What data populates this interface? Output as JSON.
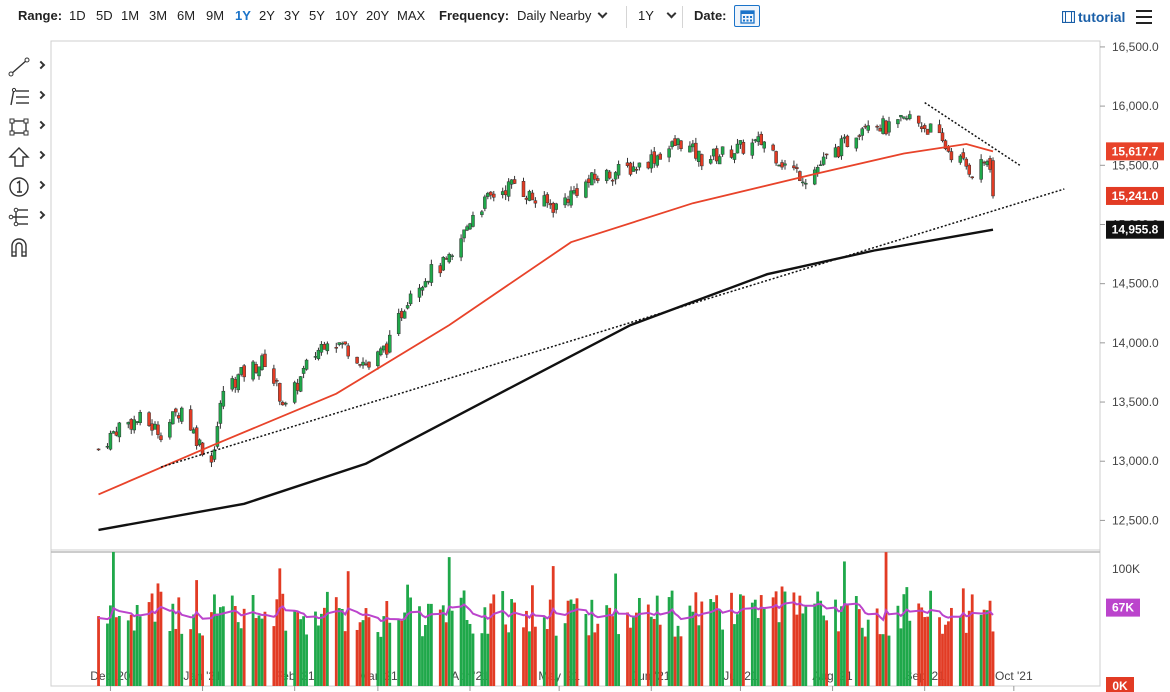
{
  "toolbar": {
    "range_label": "Range:",
    "ranges": [
      "1D",
      "5D",
      "1M",
      "3M",
      "6M",
      "9M",
      "1Y",
      "2Y",
      "3Y",
      "5Y",
      "10Y",
      "20Y",
      "MAX"
    ],
    "active_range": "1Y",
    "frequency_label": "Frequency:",
    "frequency_value": "Daily Nearby",
    "period_value": "1Y",
    "date_label": "Date:",
    "tutorial_label": "tutorial"
  },
  "sidebar": {
    "tools": [
      "trendline-tool-icon",
      "fibonacci-tool-icon",
      "rectangle-tool-icon",
      "arrow-tool-icon",
      "annotation-tool-icon",
      "pitchfork-tool-icon",
      "magnet-icon"
    ]
  },
  "colors": {
    "up": "#1fa84a",
    "down": "#e23b24",
    "ma_short": "#e8432a",
    "ma_long": "#111111",
    "volume_avg": "#bb44cc",
    "accent": "#1a73c9"
  },
  "chart_data": {
    "type": "candlestick",
    "x_tick_labels": [
      "Dec '20",
      "Jan '21",
      "Feb '21",
      "Mar '21",
      "Apr '21",
      "May '21",
      "Jun '21",
      "Jul '21",
      "Aug '21",
      "Sep '21",
      "Oct '21"
    ],
    "y_tick_labels": [
      "16,500.0",
      "16,000.0",
      "15,500.0",
      "15,000.0",
      "14,500.0",
      "14,000.0",
      "13,500.0",
      "13,000.0",
      "12,500.0"
    ],
    "ylim": [
      12250,
      16550
    ],
    "close_path": [
      [
        "2020-11-27",
        13100
      ],
      [
        "2020-12-04",
        13300
      ],
      [
        "2020-12-11",
        13350
      ],
      [
        "2020-12-18",
        13250
      ],
      [
        "2020-12-25",
        13450
      ],
      [
        "2020-12-31",
        13150
      ],
      [
        "2021-01-04",
        13000
      ],
      [
        "2021-01-08",
        13600
      ],
      [
        "2021-01-15",
        13750
      ],
      [
        "2021-01-22",
        13850
      ],
      [
        "2021-01-29",
        13450
      ],
      [
        "2021-02-05",
        13800
      ],
      [
        "2021-02-12",
        14050
      ],
      [
        "2021-02-19",
        13950
      ],
      [
        "2021-02-26",
        13800
      ],
      [
        "2021-03-05",
        14000
      ],
      [
        "2021-03-12",
        14450
      ],
      [
        "2021-03-19",
        14600
      ],
      [
        "2021-03-26",
        14700
      ],
      [
        "2021-04-02",
        15100
      ],
      [
        "2021-04-09",
        15250
      ],
      [
        "2021-04-16",
        15350
      ],
      [
        "2021-04-23",
        15200
      ],
      [
        "2021-04-30",
        15150
      ],
      [
        "2021-05-07",
        15300
      ],
      [
        "2021-05-14",
        15400
      ],
      [
        "2021-05-21",
        15450
      ],
      [
        "2021-05-28",
        15500
      ],
      [
        "2021-06-04",
        15600
      ],
      [
        "2021-06-11",
        15700
      ],
      [
        "2021-06-18",
        15550
      ],
      [
        "2021-06-25",
        15600
      ],
      [
        "2021-07-02",
        15650
      ],
      [
        "2021-07-09",
        15700
      ],
      [
        "2021-07-16",
        15500
      ],
      [
        "2021-07-23",
        15400
      ],
      [
        "2021-07-30",
        15550
      ],
      [
        "2021-08-06",
        15700
      ],
      [
        "2021-08-13",
        15900
      ],
      [
        "2021-08-20",
        15800
      ],
      [
        "2021-08-27",
        15900
      ],
      [
        "2021-09-03",
        15800
      ],
      [
        "2021-09-10",
        15600
      ],
      [
        "2021-09-17",
        15450
      ],
      [
        "2021-09-22",
        15550
      ],
      [
        "2021-09-24",
        15241
      ]
    ],
    "indicators": [
      {
        "type": "moving-average",
        "points": [
          [
            "2020-11-27",
            12720
          ],
          [
            "2021-01-04",
            13130
          ],
          [
            "2021-02-15",
            13570
          ],
          [
            "2021-03-25",
            14150
          ],
          [
            "2021-05-05",
            14850
          ],
          [
            "2021-06-15",
            15180
          ],
          [
            "2021-07-25",
            15420
          ],
          [
            "2021-08-25",
            15600
          ],
          [
            "2021-09-15",
            15680
          ],
          [
            "2021-09-24",
            15617.7
          ]
        ],
        "last_value": "15,617.7"
      },
      {
        "type": "moving-average",
        "points": [
          [
            "2020-11-27",
            12420
          ],
          [
            "2021-01-15",
            12640
          ],
          [
            "2021-02-25",
            12980
          ],
          [
            "2021-04-10",
            13560
          ],
          [
            "2021-05-25",
            14150
          ],
          [
            "2021-07-10",
            14580
          ],
          [
            "2021-08-15",
            14780
          ],
          [
            "2021-09-24",
            14955.8
          ]
        ],
        "last_value": "14,955.8"
      },
      {
        "type": "trendline",
        "points": [
          [
            "2020-12-18",
            12950
          ],
          [
            "2021-10-18",
            15300
          ]
        ],
        "style": "dotted"
      },
      {
        "type": "trendline",
        "points": [
          [
            "2021-09-01",
            16030
          ],
          [
            "2021-10-03",
            15500
          ]
        ],
        "style": "dotted"
      }
    ],
    "last_price_label": "15,241.0",
    "volume": {
      "y_tick_labels": [
        "100K",
        "0K"
      ],
      "ylim": [
        0,
        100000
      ],
      "average_label": "67K",
      "average_value": 67000
    }
  }
}
